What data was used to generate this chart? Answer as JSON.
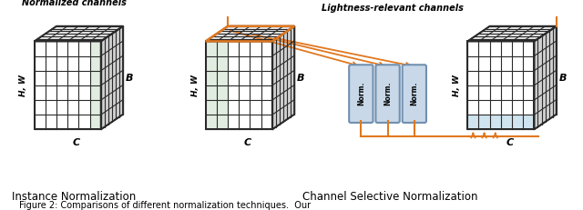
{
  "fig_width": 6.4,
  "fig_height": 2.31,
  "dpi": 100,
  "bg_color": "#ffffff",
  "cube_line_color": "#2a2a2a",
  "cube_fill_front": "#ffffff",
  "cube_fill_green": "#e0ede0",
  "cube_fill_blue": "#d0e4f0",
  "cube_fill_top": "#e8e8e8",
  "cube_fill_right": "#d0d0d0",
  "arrow_color": "#e07820",
  "norm_box_fill": "#c8d8e8",
  "norm_box_edge": "#7090b0",
  "title1": "Normalized channels",
  "title2": "Lightness-relevant channels",
  "label1": "Instance Normalization",
  "label2": "Channel Selective Normalization",
  "caption": "Figure 2: Comparisons of different normalization techniques.  Our",
  "label_B": "B",
  "label_C": "C",
  "label_HW": "H, W",
  "norm_text": "Norm."
}
